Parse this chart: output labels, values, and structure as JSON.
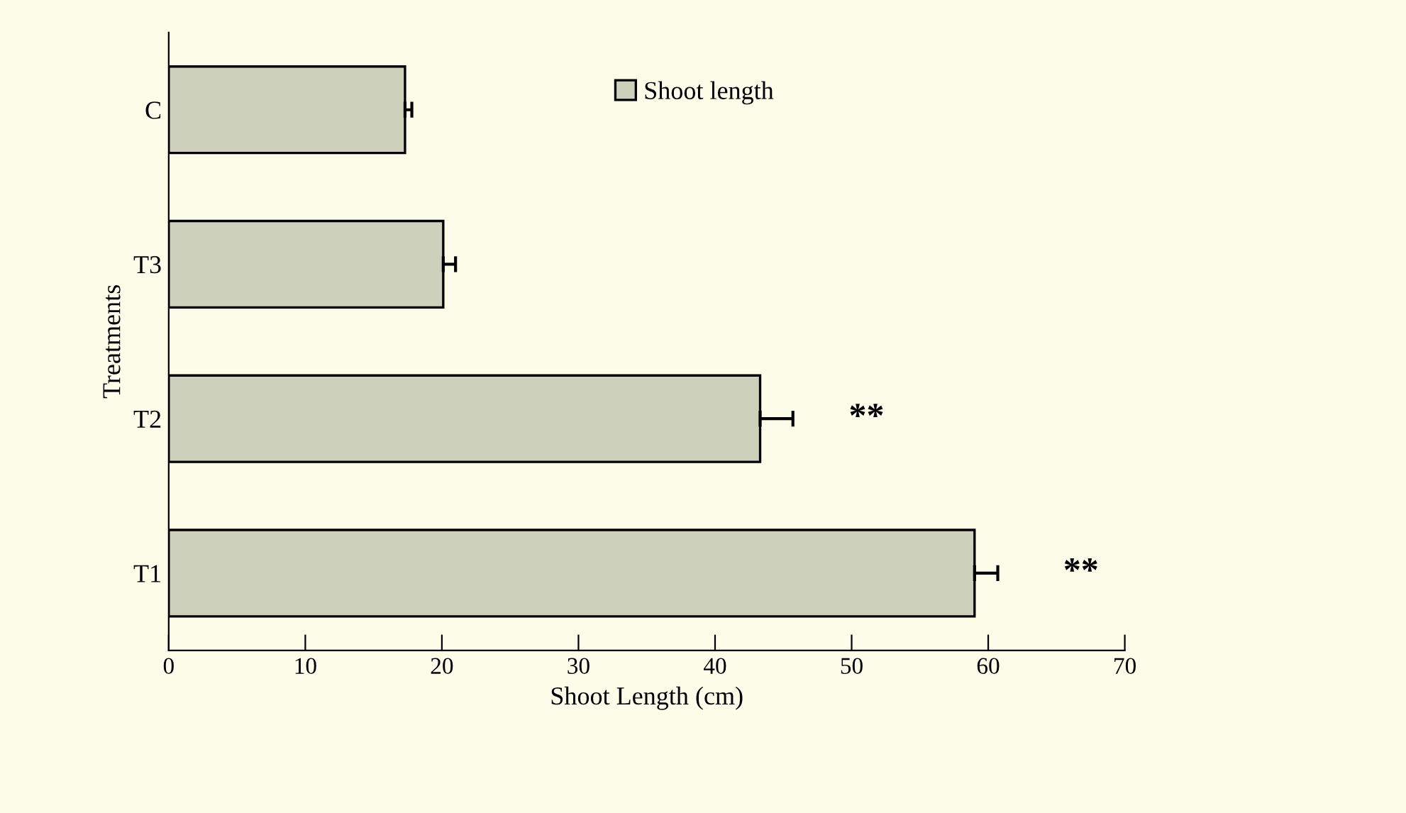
{
  "chart_data": {
    "type": "bar",
    "orientation": "horizontal",
    "xlabel": "Shoot Length (cm)",
    "ylabel": "Treatments",
    "categories": [
      "C",
      "T3",
      "T2",
      "T1"
    ],
    "series": [
      {
        "name": "Shoot length",
        "color": "#cdd1bc",
        "values": [
          17.3,
          20.1,
          43.3,
          59.0
        ],
        "errors": [
          [
            17.3,
            17.8
          ],
          [
            20.1,
            21.0
          ],
          [
            43.3,
            45.7
          ],
          [
            59.0,
            60.7
          ]
        ]
      }
    ],
    "xlim": [
      0,
      70
    ],
    "xticks": [
      0,
      10,
      20,
      30,
      40,
      50,
      60,
      70
    ],
    "grid": false,
    "legend": "top",
    "annotations": [
      {
        "text": "**",
        "x": 43.3,
        "y": "T2"
      },
      {
        "text": "**",
        "x": 59.0,
        "y": "T1"
      }
    ]
  }
}
